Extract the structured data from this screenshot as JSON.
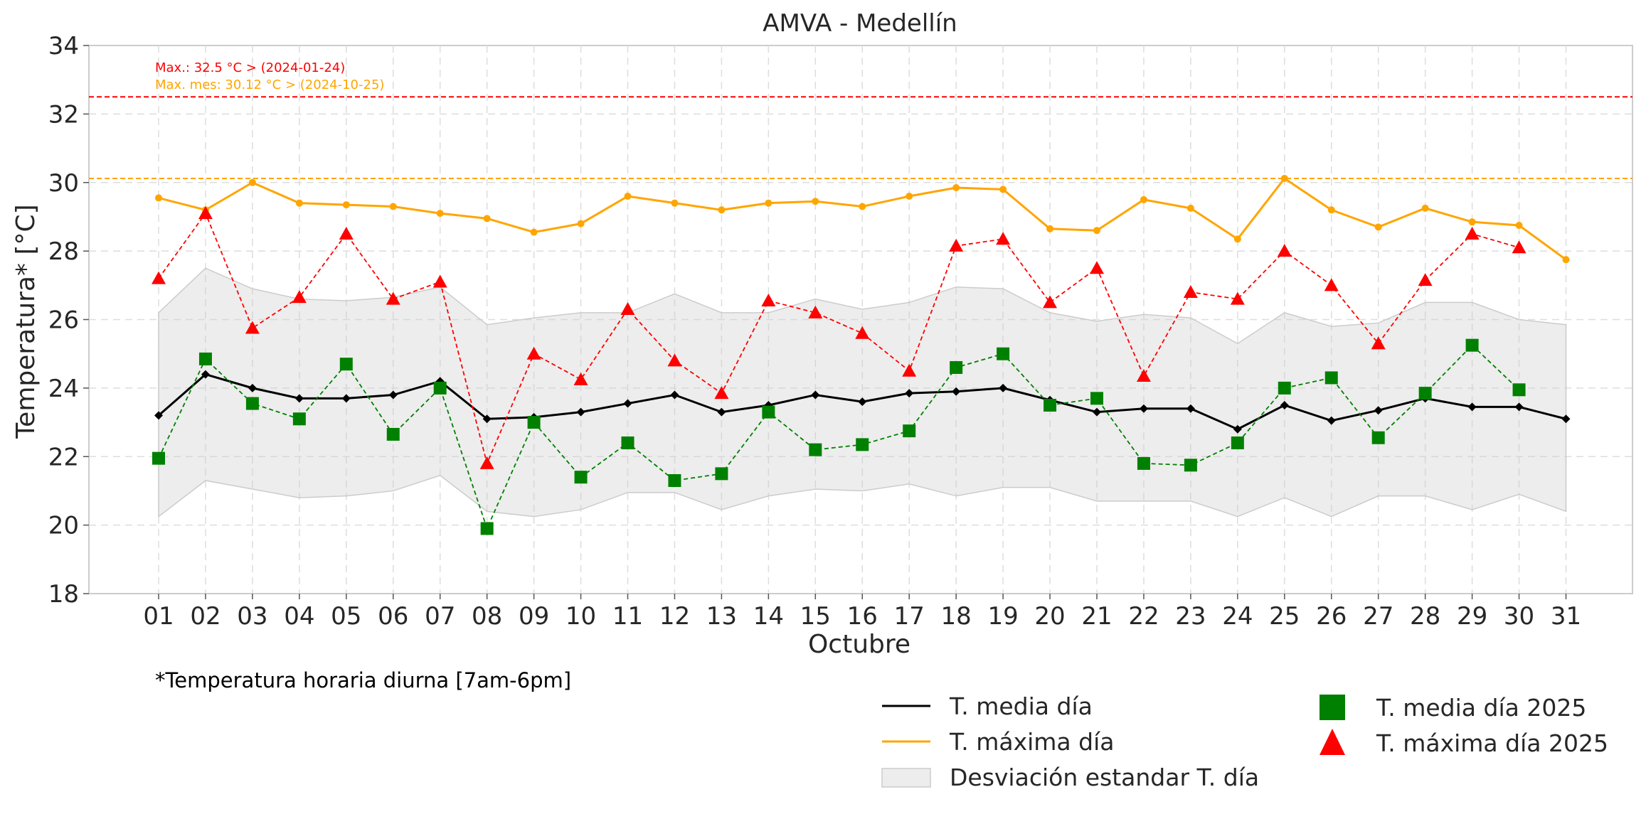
{
  "chart_data": {
    "type": "line",
    "title": "AMVA - Medellín",
    "xlabel": "Octubre",
    "ylabel": "Temperatura* [°C]",
    "ylim": [
      18,
      34
    ],
    "yticks": [
      18,
      20,
      22,
      24,
      26,
      28,
      30,
      32,
      34
    ],
    "categories": [
      "01",
      "02",
      "03",
      "04",
      "05",
      "06",
      "07",
      "08",
      "09",
      "10",
      "11",
      "12",
      "13",
      "14",
      "15",
      "16",
      "17",
      "18",
      "19",
      "20",
      "21",
      "22",
      "23",
      "24",
      "25",
      "26",
      "27",
      "28",
      "29",
      "30",
      "31"
    ],
    "grid": true,
    "footnote": "*Temperatura horaria diurna [7am-6pm]",
    "reference_lines": [
      {
        "name": "max_record",
        "value": 32.5,
        "color": "#ff0000",
        "label": "Max.: 32.5 °C  >  (2024-01-24)"
      },
      {
        "name": "max_month",
        "value": 30.12,
        "color": "#ffa500",
        "label": "Max. mes: 30.12 °C  >  (2024-10-25)"
      }
    ],
    "series": [
      {
        "name": "T. media día",
        "color": "#000000",
        "marker": "diamond",
        "style": "solid",
        "values": [
          23.2,
          24.4,
          24.0,
          23.7,
          23.7,
          23.8,
          24.2,
          23.1,
          23.15,
          23.3,
          23.55,
          23.8,
          23.3,
          23.5,
          23.8,
          23.6,
          23.85,
          23.9,
          24.0,
          23.65,
          23.3,
          23.4,
          23.4,
          22.8,
          23.5,
          23.05,
          23.35,
          23.7,
          23.45,
          23.45,
          23.1
        ]
      },
      {
        "name": "T. máxima día",
        "color": "#ffa500",
        "marker": "circle",
        "style": "solid",
        "values": [
          29.55,
          29.2,
          30.0,
          29.4,
          29.35,
          29.3,
          29.1,
          28.95,
          28.55,
          28.8,
          29.6,
          29.4,
          29.2,
          29.4,
          29.45,
          29.3,
          29.6,
          29.85,
          29.8,
          28.65,
          28.6,
          29.5,
          29.25,
          28.35,
          30.12,
          29.2,
          28.7,
          29.25,
          28.85,
          28.75,
          27.75
        ]
      },
      {
        "name": "T. media día 2025",
        "color": "#008000",
        "marker": "square",
        "style": "dashed",
        "values": [
          21.95,
          24.85,
          23.55,
          23.1,
          24.7,
          22.65,
          24.0,
          19.9,
          23.0,
          21.4,
          22.4,
          21.3,
          21.5,
          23.3,
          22.2,
          22.35,
          22.75,
          24.6,
          25.0,
          23.5,
          23.7,
          21.8,
          21.75,
          22.4,
          24.0,
          24.3,
          22.55,
          23.85,
          25.25,
          23.95,
          null
        ]
      },
      {
        "name": "T. máxima día 2025",
        "color": "#ff0000",
        "marker": "triangle",
        "style": "dashed",
        "values": [
          27.2,
          29.1,
          25.75,
          26.65,
          28.5,
          26.6,
          27.1,
          21.8,
          25.0,
          24.25,
          26.3,
          24.8,
          23.85,
          26.55,
          26.2,
          25.6,
          24.5,
          28.15,
          28.35,
          26.5,
          27.5,
          24.35,
          26.8,
          26.6,
          28.0,
          27.0,
          25.3,
          27.15,
          28.5,
          28.1,
          null
        ]
      }
    ],
    "band": {
      "name": "Desviación estandar T. día",
      "color": "#cccccc",
      "upper": [
        26.2,
        27.5,
        26.9,
        26.6,
        26.55,
        26.65,
        26.95,
        25.85,
        26.05,
        26.2,
        26.2,
        26.75,
        26.2,
        26.2,
        26.6,
        26.3,
        26.5,
        26.95,
        26.9,
        26.2,
        25.95,
        26.15,
        26.05,
        25.3,
        26.2,
        25.8,
        25.9,
        26.5,
        26.5,
        26.0,
        25.85
      ],
      "lower": [
        20.25,
        21.3,
        21.05,
        20.8,
        20.85,
        21.0,
        21.45,
        20.4,
        20.25,
        20.45,
        20.95,
        20.95,
        20.45,
        20.85,
        21.05,
        21.0,
        21.2,
        20.85,
        21.1,
        21.1,
        20.7,
        20.7,
        20.7,
        20.25,
        20.8,
        20.25,
        20.85,
        20.85,
        20.45,
        20.9,
        20.4
      ]
    },
    "legend": {
      "placement": "bottom-right",
      "entries": [
        {
          "label": "T. media día",
          "kind": "line",
          "color": "#000000"
        },
        {
          "label": "T. máxima día",
          "kind": "line",
          "color": "#ffa500"
        },
        {
          "label": "Desviación estandar T. día",
          "kind": "band",
          "color": "#cccccc"
        },
        {
          "label": "T. media día 2025",
          "kind": "square",
          "color": "#008000"
        },
        {
          "label": "T. máxima día 2025",
          "kind": "triangle",
          "color": "#ff0000"
        }
      ]
    }
  }
}
